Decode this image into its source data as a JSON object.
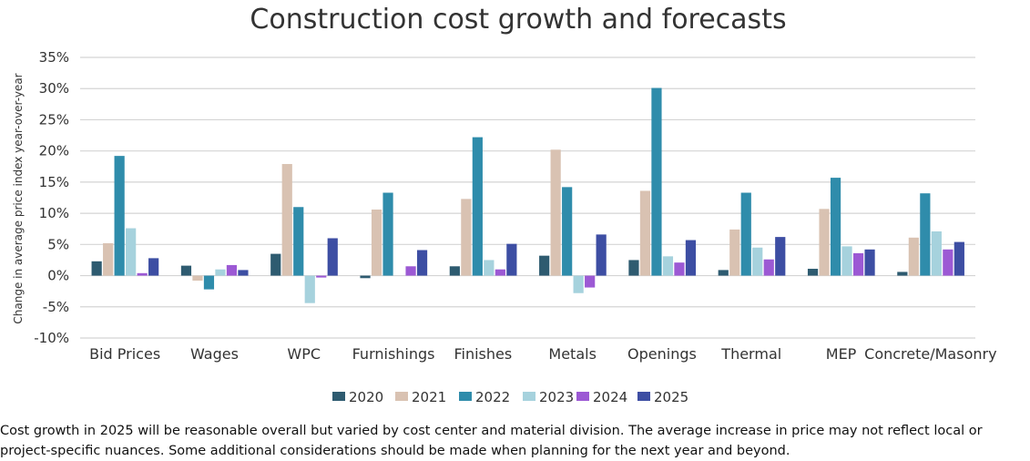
{
  "chart_data": {
    "type": "bar",
    "title": "Construction cost growth and forecasts",
    "xlabel": "",
    "ylabel": "Change in average price index year-over-year",
    "ylim": [
      -10,
      35
    ],
    "yticks": [
      "35%",
      "30%",
      "25%",
      "20%",
      "15%",
      "10%",
      "5%",
      "0%",
      "-5%",
      "-10%"
    ],
    "ytick_values": [
      35,
      30,
      25,
      20,
      15,
      10,
      5,
      0,
      -5,
      -10
    ],
    "grid": true,
    "legend_position": "bottom",
    "categories": [
      "Bid Prices",
      "Wages",
      "WPC",
      "Furnishings",
      "Finishes",
      "Metals",
      "Openings",
      "Thermal",
      "MEP",
      "Concrete/Masonry"
    ],
    "series": [
      {
        "name": "2020",
        "color": "#2e5b70",
        "values": [
          2.3,
          1.6,
          3.5,
          -0.4,
          1.5,
          3.2,
          2.5,
          0.9,
          1.1,
          0.6
        ]
      },
      {
        "name": "2021",
        "color": "#d9c2b2",
        "values": [
          5.2,
          -0.8,
          17.9,
          10.6,
          12.3,
          20.2,
          13.6,
          7.4,
          10.7,
          6.1
        ]
      },
      {
        "name": "2022",
        "color": "#2f8cab",
        "values": [
          19.2,
          -2.2,
          11.0,
          13.3,
          22.2,
          14.2,
          30.1,
          13.3,
          15.7,
          13.2
        ]
      },
      {
        "name": "2023",
        "color": "#a6d2dd",
        "values": [
          7.6,
          1.0,
          -4.4,
          0.0,
          2.5,
          -2.8,
          3.1,
          4.5,
          4.7,
          7.1
        ]
      },
      {
        "name": "2024",
        "color": "#9c59d4",
        "values": [
          0.4,
          1.7,
          -0.3,
          1.5,
          1.0,
          -1.9,
          2.1,
          2.6,
          3.6,
          4.2
        ]
      },
      {
        "name": "2025",
        "color": "#3d4ea3",
        "values": [
          2.8,
          0.9,
          6.0,
          4.1,
          5.1,
          6.6,
          5.7,
          6.2,
          4.2,
          5.4
        ]
      }
    ]
  },
  "caption": "Cost growth in 2025 will be reasonable overall but varied by cost center and material division. The average increase in price may not reflect local or project-specific nuances. Some additional considerations should be made when planning for the next year and beyond."
}
